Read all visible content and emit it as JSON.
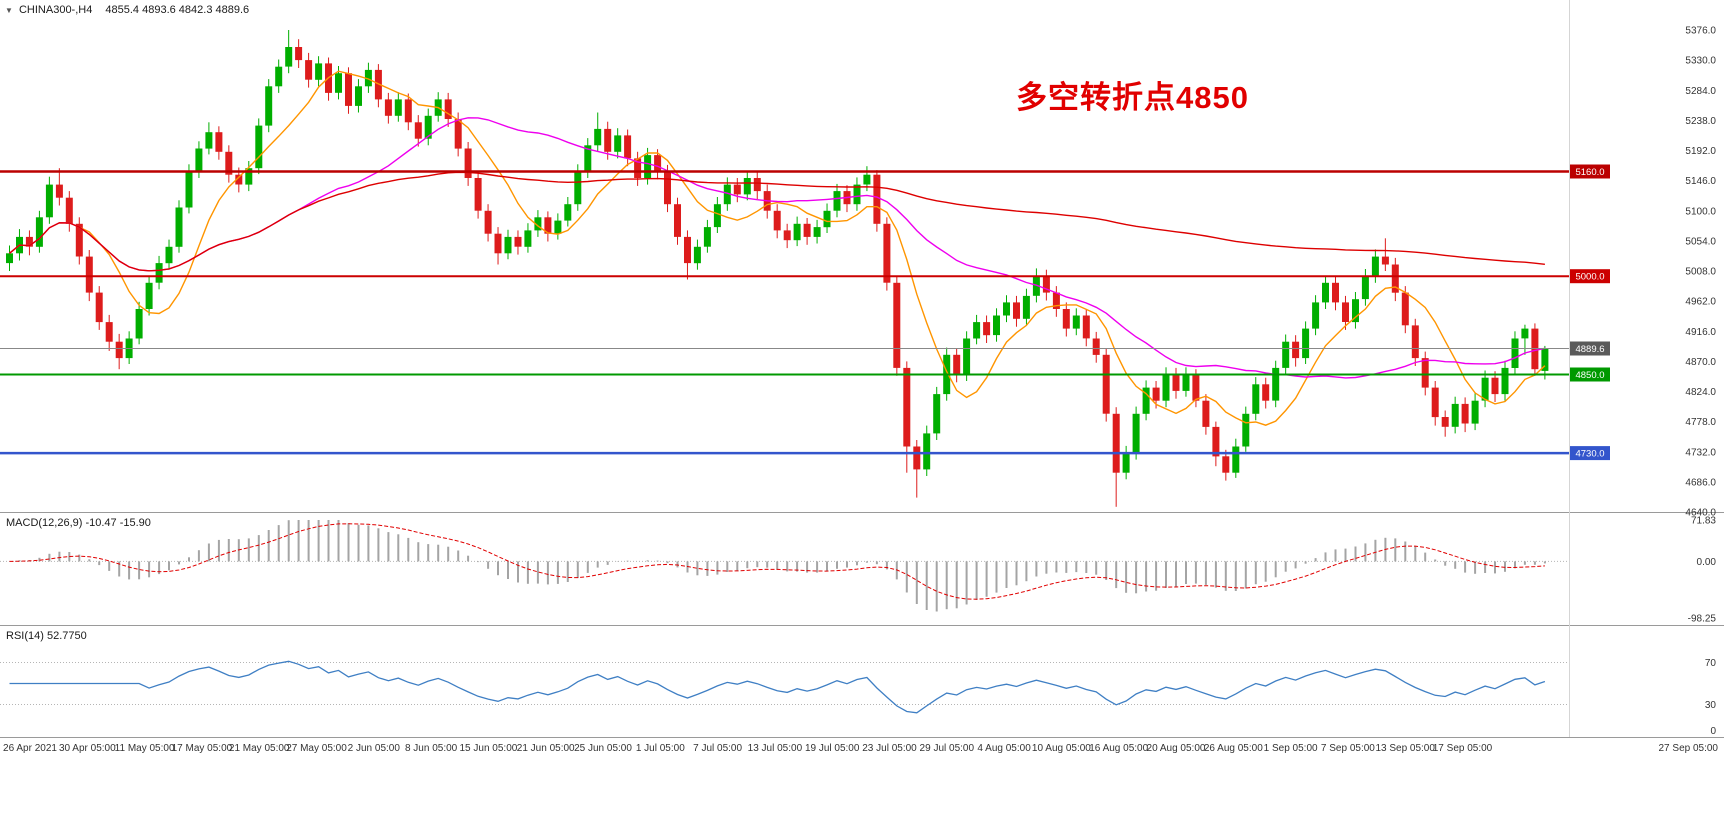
{
  "window": {
    "collapse_icon": "▼",
    "symbol_period": "CHINA300-,H4",
    "ohlc_text": "4855.4 4893.6 4842.3 4889.6"
  },
  "annotation": {
    "text": "多空转折点4850",
    "color": "#e10000"
  },
  "chart_data": {
    "type": "candlestick",
    "symbol": "CHINA300-",
    "timeframe": "H4",
    "title": "CHINA300-,H4",
    "current_bar": {
      "open": 4855.4,
      "high": 4893.6,
      "low": 4842.3,
      "close": 4889.6
    },
    "price_axis": {
      "min": 4640,
      "max": 5376,
      "ticks": [
        "5376.0",
        "5330.0",
        "5284.0",
        "5238.0",
        "5192.0",
        "5146.0",
        "5100.0",
        "5054.0",
        "5008.0",
        "4962.0",
        "4916.0",
        "4870.0",
        "4824.0",
        "4778.0",
        "4732.0",
        "4686.0",
        "4640.0"
      ]
    },
    "time_axis": {
      "labels": [
        "26 Apr 2021",
        "30 Apr 05:00",
        "11 May 05:00",
        "17 May 05:00",
        "21 May 05:00",
        "27 May 05:00",
        "2 Jun 05:00",
        "8 Jun 05:00",
        "15 Jun 05:00",
        "21 Jun 05:00",
        "25 Jun 05:00",
        "1 Jul 05:00",
        "7 Jul 05:00",
        "13 Jul 05:00",
        "19 Jul 05:00",
        "23 Jul 05:00",
        "29 Jul 05:00",
        "4 Aug 05:00",
        "10 Aug 05:00",
        "16 Aug 05:00",
        "20 Aug 05:00",
        "26 Aug 05:00",
        "1 Sep 05:00",
        "7 Sep 05:00",
        "13 Sep 05:00",
        "17 Sep 05:00",
        "27 Sep 05:00"
      ]
    },
    "colors": {
      "bull": "#00ae00",
      "bear": "#dd1c1c",
      "background": "#ffffff",
      "macd_hist": "#a4a4a4",
      "macd_signal": "#e00000",
      "rsi_line": "#3f7fc4",
      "axis_text": "#333333",
      "separator": "#9a9a9a",
      "level_dots": "#b5b5b5"
    },
    "moving_averages": [
      {
        "name": "ma-fast",
        "color": "#ff9500",
        "window": 8
      },
      {
        "name": "ma-medium",
        "color": "#ee00ee",
        "window": 30
      },
      {
        "name": "ma-slow",
        "color": "#dd0000",
        "window": 150
      }
    ],
    "horizontal_lines": [
      {
        "value": 5160.0,
        "label": "5160.0",
        "color": "#bb0000",
        "width": 2.5
      },
      {
        "value": 5000.0,
        "label": "5000.0",
        "color": "#cc0000",
        "width": 2
      },
      {
        "value": 4850.0,
        "label": "4850.0",
        "color": "#009900",
        "width": 2
      },
      {
        "value": 4730.0,
        "label": "4730.0",
        "color": "#3355cc",
        "width": 2.5
      }
    ],
    "current_price_line": {
      "value": 4889.6,
      "label": "4889.6",
      "color": "#888888",
      "badge": "#5a5a5a"
    },
    "indicators": [
      {
        "name": "MACD",
        "label": "MACD(12,26,9) -10.47 -15.90",
        "params": [
          12,
          26,
          9
        ],
        "main_value": -10.47,
        "signal_value": -15.9,
        "scale_ticks": [
          71.83,
          0,
          -98.25
        ],
        "scale_labels": [
          "71.83",
          "0.00",
          "-98.25"
        ]
      },
      {
        "name": "RSI",
        "label": "RSI(14) 52.7750",
        "period": 14,
        "value": 52.775,
        "levels": [
          70,
          30
        ],
        "scale_labels": [
          "70",
          "30",
          "0"
        ]
      }
    ],
    "candles": [
      [
        5020,
        5047,
        5008,
        5035
      ],
      [
        5035,
        5072,
        5024,
        5060
      ],
      [
        5060,
        5070,
        5032,
        5045
      ],
      [
        5045,
        5100,
        5036,
        5090
      ],
      [
        5090,
        5152,
        5080,
        5140
      ],
      [
        5140,
        5165,
        5108,
        5120
      ],
      [
        5120,
        5130,
        5068,
        5080
      ],
      [
        5080,
        5090,
        5018,
        5030
      ],
      [
        5030,
        5040,
        4962,
        4975
      ],
      [
        4975,
        4985,
        4918,
        4930
      ],
      [
        4930,
        4941,
        4886,
        4900
      ],
      [
        4900,
        4912,
        4858,
        4875
      ],
      [
        4875,
        4916,
        4866,
        4905
      ],
      [
        4905,
        4961,
        4896,
        4950
      ],
      [
        4950,
        5001,
        4940,
        4990
      ],
      [
        4990,
        5031,
        4980,
        5020
      ],
      [
        5020,
        5056,
        5010,
        5045
      ],
      [
        5045,
        5116,
        5036,
        5105
      ],
      [
        5105,
        5171,
        5096,
        5160
      ],
      [
        5160,
        5206,
        5150,
        5195
      ],
      [
        5195,
        5235,
        5186,
        5220
      ],
      [
        5220,
        5229,
        5178,
        5190
      ],
      [
        5190,
        5200,
        5143,
        5155
      ],
      [
        5155,
        5166,
        5128,
        5140
      ],
      [
        5140,
        5176,
        5130,
        5165
      ],
      [
        5165,
        5241,
        5156,
        5230
      ],
      [
        5230,
        5301,
        5220,
        5290
      ],
      [
        5290,
        5331,
        5280,
        5320
      ],
      [
        5320,
        5376,
        5310,
        5350
      ],
      [
        5350,
        5362,
        5318,
        5330
      ],
      [
        5330,
        5341,
        5288,
        5300
      ],
      [
        5300,
        5336,
        5290,
        5325
      ],
      [
        5325,
        5334,
        5268,
        5280
      ],
      [
        5280,
        5321,
        5270,
        5310
      ],
      [
        5310,
        5319,
        5248,
        5260
      ],
      [
        5260,
        5301,
        5250,
        5290
      ],
      [
        5290,
        5326,
        5280,
        5315
      ],
      [
        5315,
        5324,
        5258,
        5270
      ],
      [
        5270,
        5280,
        5233,
        5245
      ],
      [
        5245,
        5281,
        5236,
        5270
      ],
      [
        5270,
        5279,
        5223,
        5235
      ],
      [
        5235,
        5246,
        5198,
        5210
      ],
      [
        5210,
        5256,
        5200,
        5245
      ],
      [
        5245,
        5281,
        5236,
        5270
      ],
      [
        5270,
        5280,
        5228,
        5240
      ],
      [
        5240,
        5250,
        5183,
        5195
      ],
      [
        5195,
        5205,
        5138,
        5150
      ],
      [
        5150,
        5160,
        5088,
        5100
      ],
      [
        5100,
        5110,
        5053,
        5065
      ],
      [
        5065,
        5075,
        5018,
        5035
      ],
      [
        5035,
        5071,
        5026,
        5060
      ],
      [
        5060,
        5070,
        5033,
        5045
      ],
      [
        5045,
        5081,
        5036,
        5070
      ],
      [
        5070,
        5101,
        5060,
        5090
      ],
      [
        5090,
        5099,
        5053,
        5065
      ],
      [
        5065,
        5096,
        5056,
        5085
      ],
      [
        5085,
        5121,
        5076,
        5110
      ],
      [
        5110,
        5171,
        5100,
        5160
      ],
      [
        5160,
        5211,
        5150,
        5200
      ],
      [
        5200,
        5250,
        5190,
        5225
      ],
      [
        5225,
        5236,
        5178,
        5190
      ],
      [
        5190,
        5226,
        5180,
        5215
      ],
      [
        5215,
        5224,
        5168,
        5180
      ],
      [
        5180,
        5190,
        5138,
        5150
      ],
      [
        5150,
        5196,
        5140,
        5185
      ],
      [
        5185,
        5194,
        5148,
        5160
      ],
      [
        5160,
        5170,
        5098,
        5110
      ],
      [
        5110,
        5120,
        5048,
        5060
      ],
      [
        5060,
        5070,
        4995,
        5020
      ],
      [
        5020,
        5056,
        5010,
        5045
      ],
      [
        5045,
        5086,
        5036,
        5075
      ],
      [
        5075,
        5121,
        5066,
        5110
      ],
      [
        5110,
        5151,
        5100,
        5140
      ],
      [
        5140,
        5150,
        5113,
        5125
      ],
      [
        5125,
        5161,
        5116,
        5150
      ],
      [
        5150,
        5160,
        5118,
        5130
      ],
      [
        5130,
        5140,
        5088,
        5100
      ],
      [
        5100,
        5110,
        5058,
        5070
      ],
      [
        5070,
        5080,
        5043,
        5055
      ],
      [
        5055,
        5091,
        5046,
        5080
      ],
      [
        5080,
        5089,
        5048,
        5060
      ],
      [
        5060,
        5086,
        5050,
        5075
      ],
      [
        5075,
        5111,
        5066,
        5100
      ],
      [
        5100,
        5141,
        5090,
        5130
      ],
      [
        5130,
        5139,
        5098,
        5110
      ],
      [
        5110,
        5151,
        5100,
        5140
      ],
      [
        5140,
        5168,
        5130,
        5155
      ],
      [
        5155,
        5162,
        5068,
        5080
      ],
      [
        5080,
        5090,
        4978,
        4990
      ],
      [
        4990,
        5000,
        4848,
        4860
      ],
      [
        4860,
        4870,
        4700,
        4740
      ],
      [
        4740,
        4750,
        4662,
        4705
      ],
      [
        4705,
        4772,
        4695,
        4760
      ],
      [
        4760,
        4831,
        4750,
        4820
      ],
      [
        4820,
        4891,
        4810,
        4880
      ],
      [
        4880,
        4890,
        4838,
        4850
      ],
      [
        4850,
        4916,
        4840,
        4905
      ],
      [
        4905,
        4941,
        4896,
        4930
      ],
      [
        4930,
        4940,
        4898,
        4910
      ],
      [
        4910,
        4951,
        4900,
        4940
      ],
      [
        4940,
        4971,
        4930,
        4960
      ],
      [
        4960,
        4970,
        4923,
        4935
      ],
      [
        4935,
        4981,
        4926,
        4970
      ],
      [
        4970,
        5012,
        4960,
        5000
      ],
      [
        5000,
        5010,
        4963,
        4975
      ],
      [
        4975,
        4985,
        4938,
        4950
      ],
      [
        4950,
        4960,
        4908,
        4920
      ],
      [
        4920,
        4951,
        4910,
        4940
      ],
      [
        4940,
        4950,
        4893,
        4905
      ],
      [
        4905,
        4915,
        4868,
        4880
      ],
      [
        4880,
        4890,
        4778,
        4790
      ],
      [
        4790,
        4800,
        4648,
        4700
      ],
      [
        4700,
        4741,
        4690,
        4730
      ],
      [
        4730,
        4801,
        4720,
        4790
      ],
      [
        4790,
        4841,
        4780,
        4830
      ],
      [
        4830,
        4840,
        4798,
        4810
      ],
      [
        4810,
        4861,
        4800,
        4850
      ],
      [
        4850,
        4860,
        4813,
        4825
      ],
      [
        4825,
        4861,
        4816,
        4850
      ],
      [
        4850,
        4858,
        4800,
        4810
      ],
      [
        4810,
        4820,
        4758,
        4770
      ],
      [
        4770,
        4778,
        4710,
        4725
      ],
      [
        4725,
        4735,
        4688,
        4700
      ],
      [
        4700,
        4752,
        4692,
        4740
      ],
      [
        4740,
        4801,
        4732,
        4790
      ],
      [
        4790,
        4846,
        4780,
        4835
      ],
      [
        4835,
        4845,
        4798,
        4810
      ],
      [
        4810,
        4871,
        4800,
        4860
      ],
      [
        4860,
        4911,
        4850,
        4900
      ],
      [
        4900,
        4910,
        4862,
        4875
      ],
      [
        4875,
        4931,
        4866,
        4920
      ],
      [
        4920,
        4971,
        4910,
        4960
      ],
      [
        4960,
        5001,
        4950,
        4990
      ],
      [
        4990,
        5000,
        4948,
        4960
      ],
      [
        4960,
        4970,
        4918,
        4930
      ],
      [
        4930,
        4976,
        4920,
        4965
      ],
      [
        4965,
        5011,
        4955,
        5000
      ],
      [
        5000,
        5041,
        4990,
        5030
      ],
      [
        5030,
        5058,
        5008,
        5018
      ],
      [
        5018,
        5028,
        4962,
        4975
      ],
      [
        4975,
        4985,
        4913,
        4925
      ],
      [
        4925,
        4935,
        4863,
        4875
      ],
      [
        4875,
        4885,
        4818,
        4830
      ],
      [
        4830,
        4840,
        4772,
        4785
      ],
      [
        4785,
        4795,
        4755,
        4770
      ],
      [
        4770,
        4816,
        4760,
        4805
      ],
      [
        4805,
        4815,
        4762,
        4775
      ],
      [
        4775,
        4821,
        4765,
        4810
      ],
      [
        4810,
        4856,
        4800,
        4845
      ],
      [
        4845,
        4855,
        4808,
        4820
      ],
      [
        4820,
        4871,
        4810,
        4860
      ],
      [
        4860,
        4916,
        4850,
        4905
      ],
      [
        4905,
        4926,
        4880,
        4920
      ],
      [
        4920,
        4928,
        4848,
        4858
      ],
      [
        4855.4,
        4893.6,
        4842.3,
        4889.6
      ]
    ]
  }
}
